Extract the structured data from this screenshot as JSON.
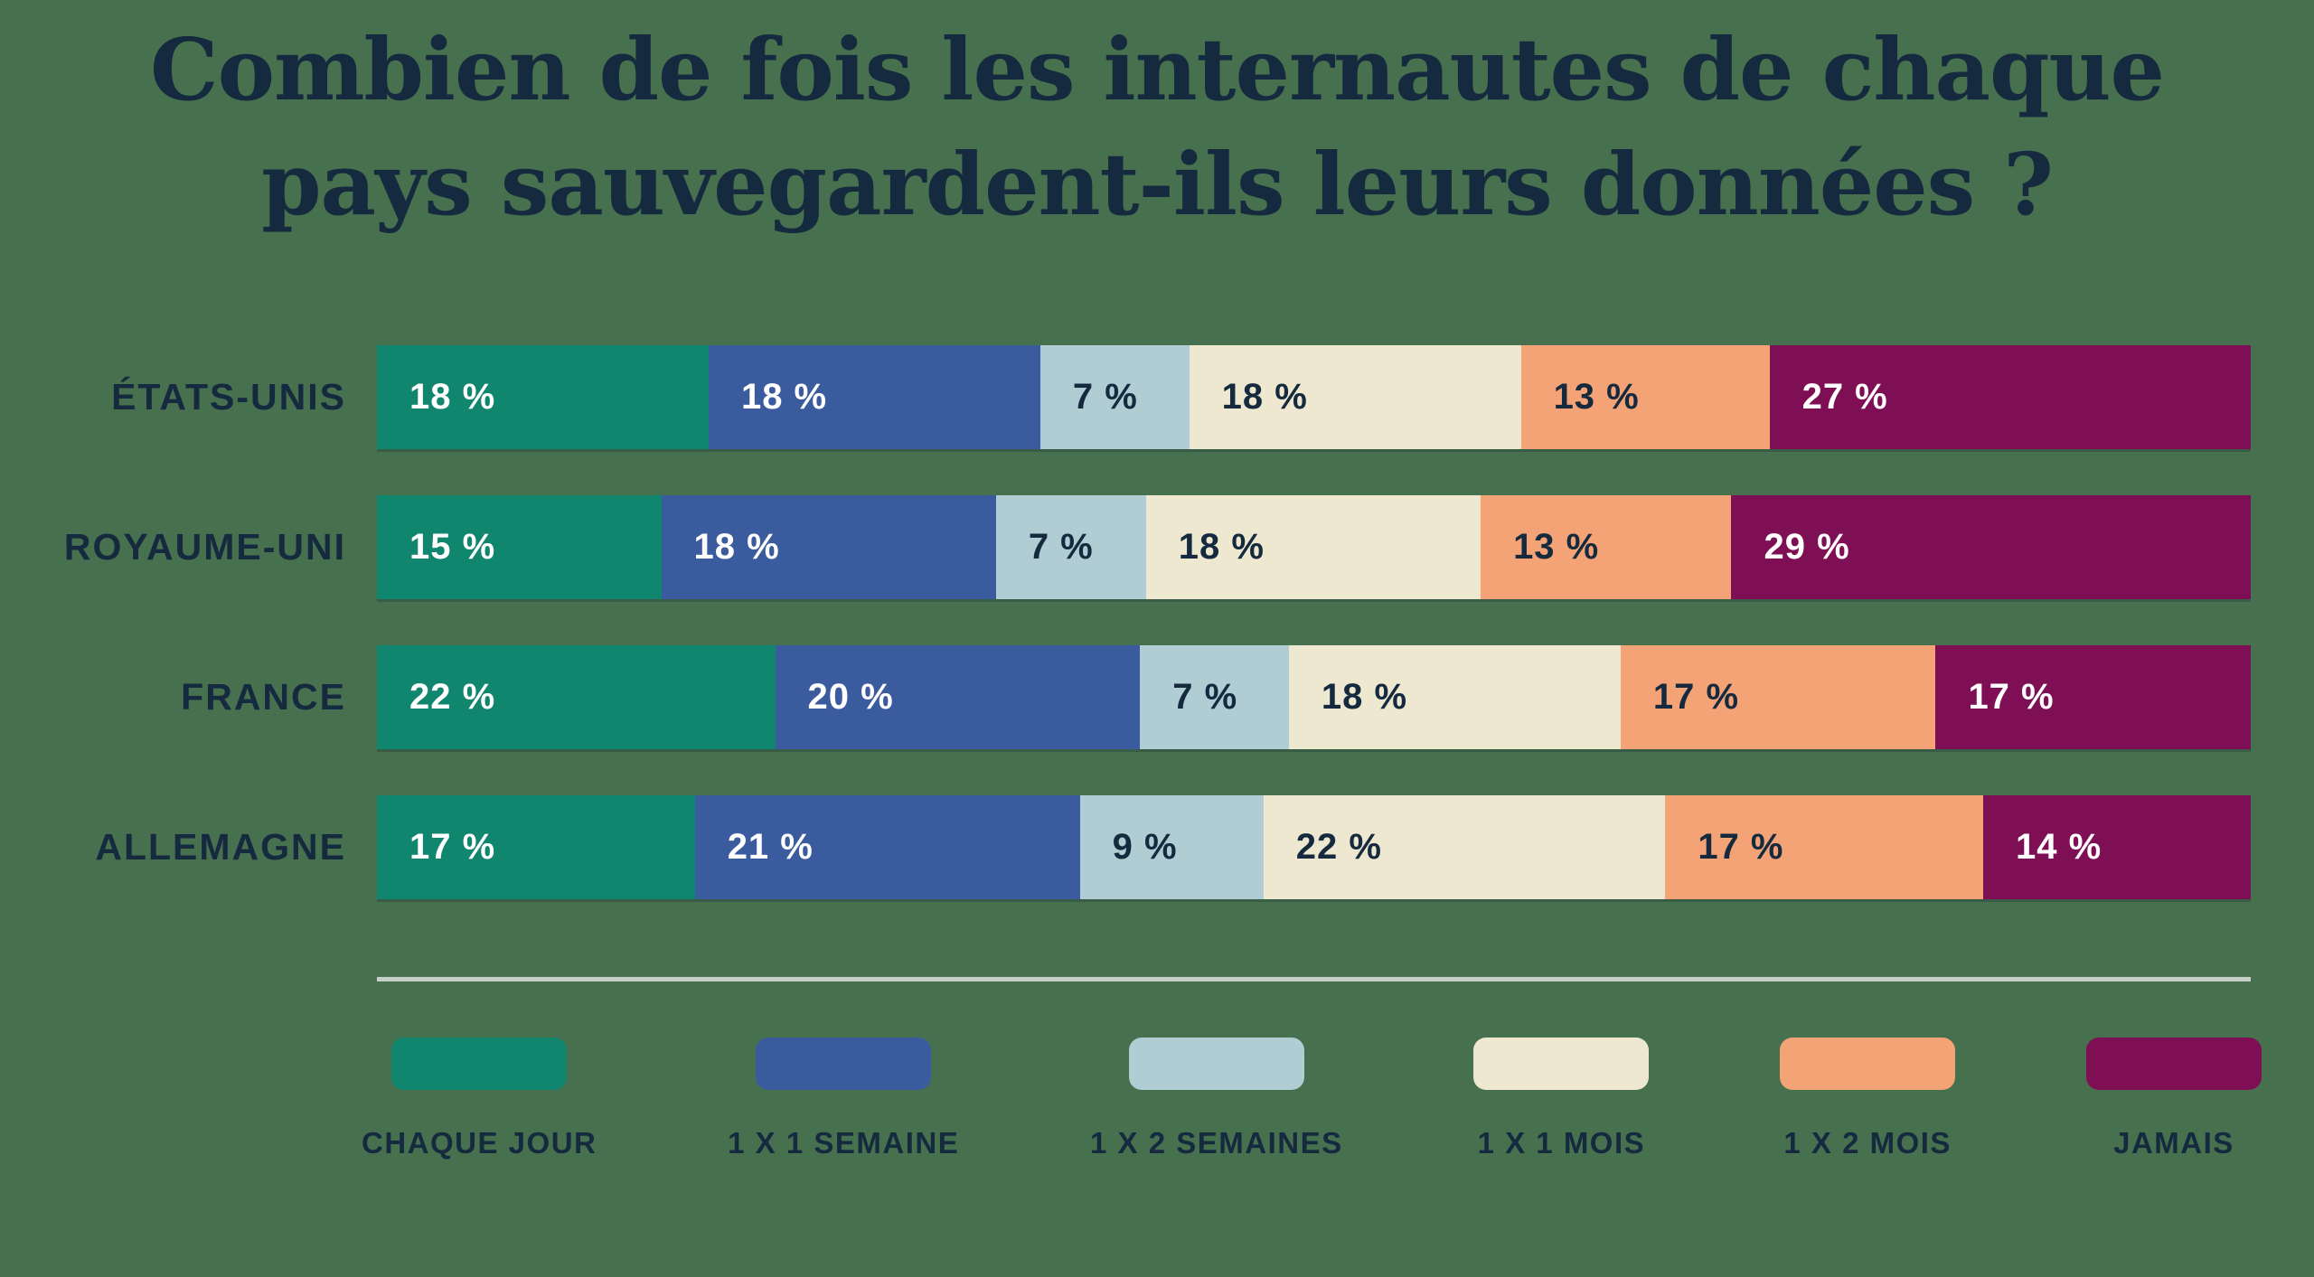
{
  "title": {
    "line1": "Combien de fois les internautes de chaque",
    "line2": "pays sauvegardent-ils leurs données ?"
  },
  "colors": {
    "background": "#47704F",
    "text_dark": "#152A3E",
    "text_light": "#FFFFFF",
    "divider": "#C7CFC9"
  },
  "chart_data": {
    "type": "bar",
    "orientation": "horizontal",
    "stacked": true,
    "normalized_percent": true,
    "title": "Combien de fois les internautes de chaque pays sauvegardent-ils leurs données ?",
    "categories": [
      "ÉTATS-UNIS",
      "ROYAUME-UNI",
      "FRANCE",
      "ALLEMAGNE"
    ],
    "value_suffix": " %",
    "legend_position": "bottom",
    "xlim": [
      0,
      100
    ],
    "series": [
      {
        "name": "CHAQUE JOUR",
        "color": "#10866F",
        "text_color": "#FFFFFF",
        "values": [
          18,
          15,
          22,
          17
        ]
      },
      {
        "name": "1 X 1 SEMAINE",
        "color": "#3B5B9F",
        "text_color": "#FFFFFF",
        "values": [
          18,
          18,
          20,
          21
        ]
      },
      {
        "name": "1 X 2 SEMAINES",
        "color": "#AFCDD3",
        "text_color": "#152A3E",
        "values": [
          7,
          7,
          7,
          9
        ]
      },
      {
        "name": "1 X 1 MOIS",
        "color": "#EDE8CF",
        "text_color": "#152A3E",
        "values": [
          18,
          18,
          18,
          22
        ]
      },
      {
        "name": "1 X 2 MOIS",
        "color": "#F3A375",
        "text_color": "#152A3E",
        "values": [
          13,
          13,
          17,
          17
        ]
      },
      {
        "name": "JAMAIS",
        "color": "#7F0F55",
        "text_color": "#FFFFFF",
        "values": [
          27,
          29,
          17,
          14
        ]
      }
    ]
  }
}
